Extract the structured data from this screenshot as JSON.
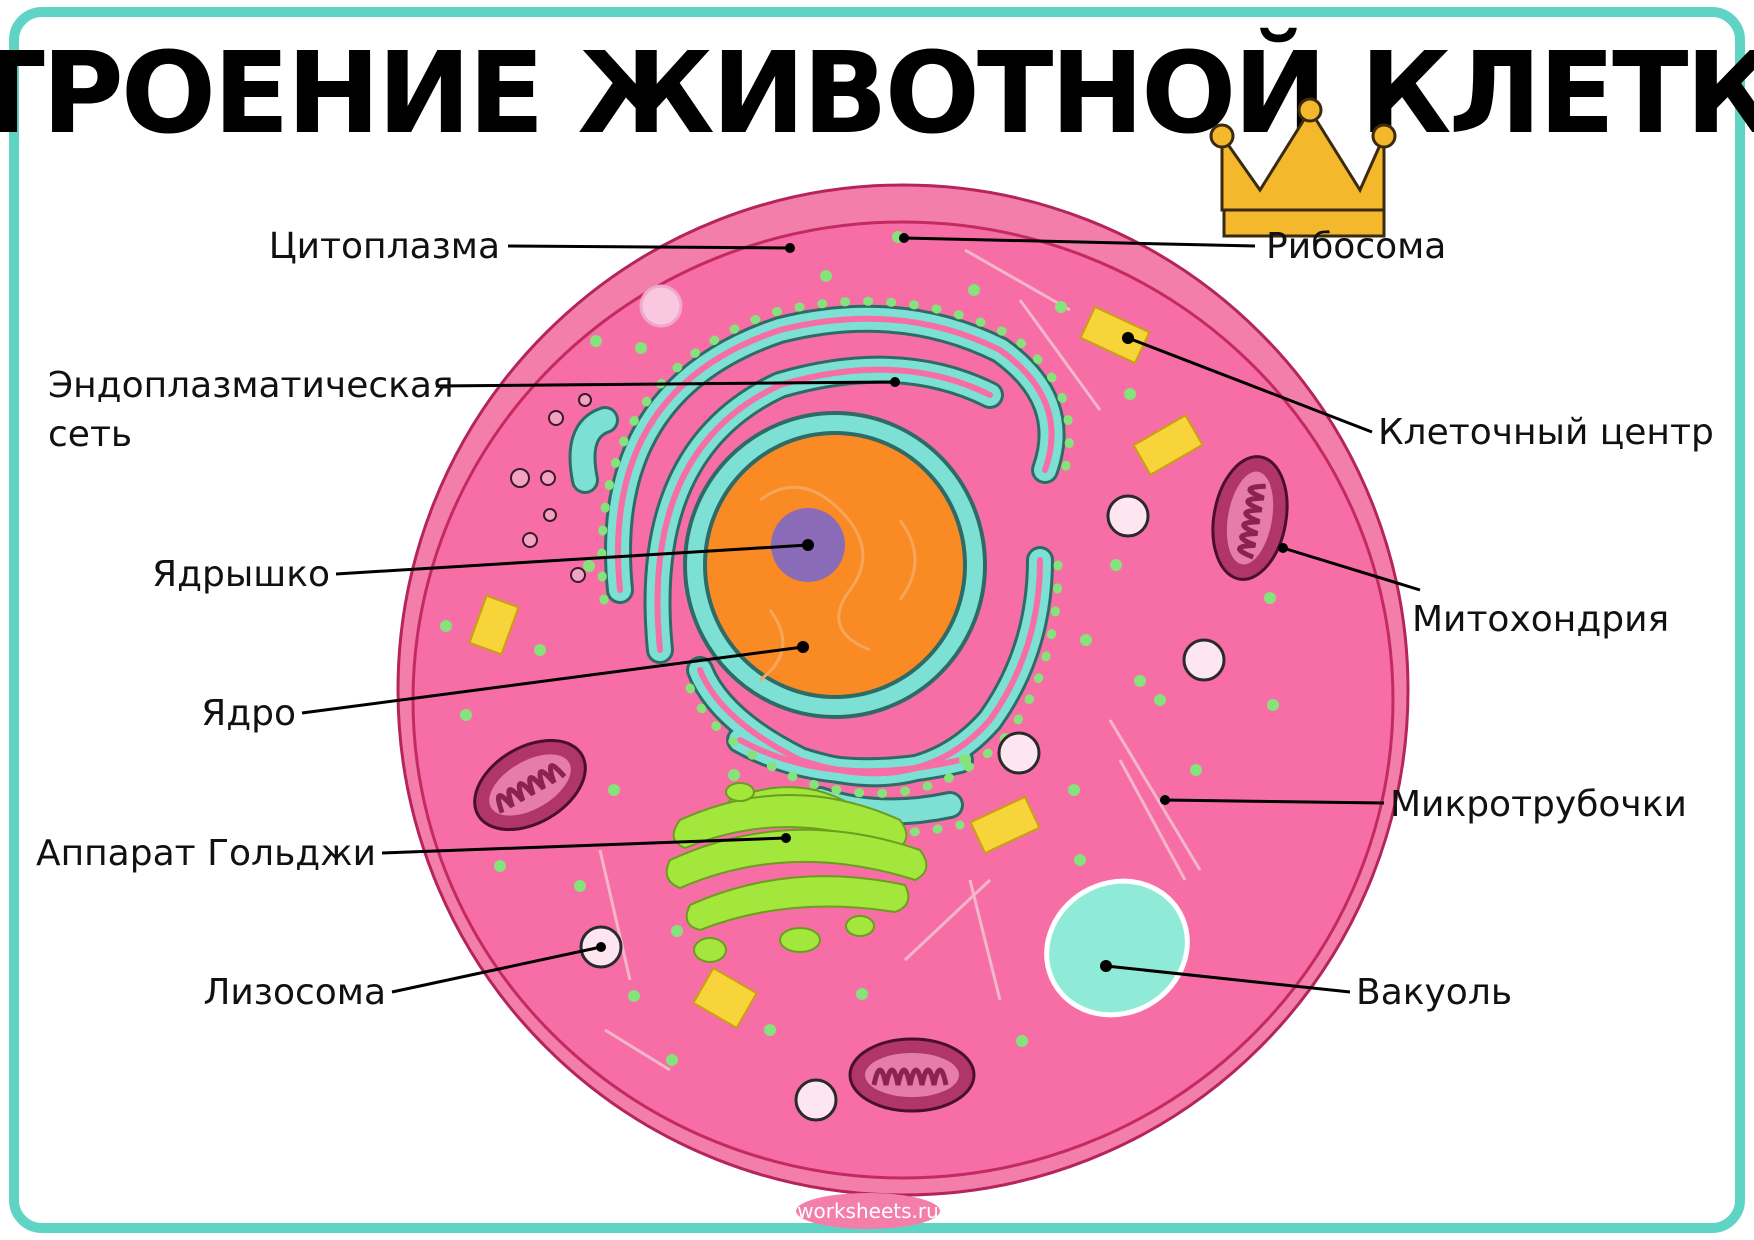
{
  "title": "СТРОЕНИЕ ЖИВОТНОЙ КЛЕТКИ",
  "labels": {
    "cytoplasm": "Цитоплазма",
    "er_line1": "Эндоплазматическая",
    "er_line2": "сеть",
    "nucleolus": "Ядрышко",
    "nucleus": "Ядро",
    "golgi": "Аппарат Гольджи",
    "lysosome": "Лизосома",
    "ribosome": "Рибосома",
    "centrosome": "Клеточный центр",
    "mitochondrion": "Митохондрия",
    "microtubules": "Микротрубочки",
    "vacuole": "Вакуоль"
  },
  "watermark": "worksheets.ru",
  "colors": {
    "frame": "#5fd4c4",
    "membrane_outer": "#f47eaa",
    "cytoplasm": "#f76ea6",
    "membrane_line": "#c42a62",
    "er": "#7de0d4",
    "ribosome_dots": "#86e27a",
    "nucleus": "#f98a24",
    "nucleolus": "#8a6bb8",
    "golgi": "#a3e63c",
    "mitochondria": "#b03568",
    "centrosome": "#f6d43a",
    "vacuole": "#8fead8",
    "crown": "#f4b82c"
  },
  "icons": [
    "crown-icon"
  ]
}
